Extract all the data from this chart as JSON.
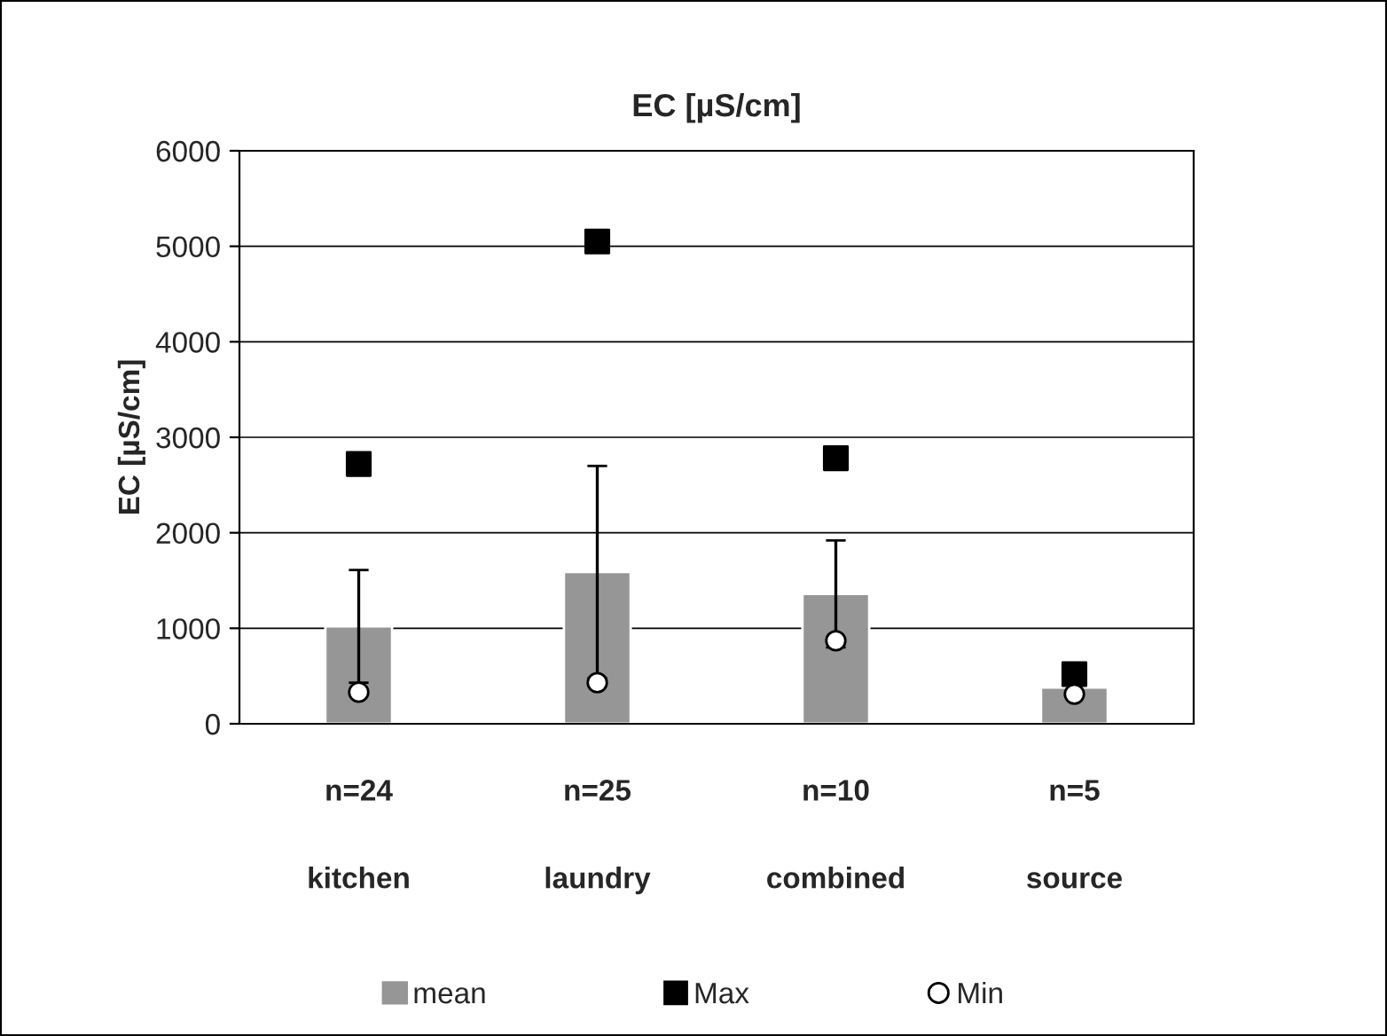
{
  "chart_data": {
    "type": "bar",
    "title": "EC [µS/cm]",
    "ylabel": "EC [µS/cm]",
    "categories": [
      "kitchen",
      "laundry",
      "combined",
      "source"
    ],
    "series": [
      {
        "name": "mean",
        "color": "#969696",
        "values": [
          1020,
          1590,
          1360,
          380
        ],
        "errors": [
          590,
          1110,
          560,
          null
        ]
      },
      {
        "name": "Max",
        "type": "scatter",
        "marker": "square",
        "color": "#000000",
        "values": [
          2720,
          5050,
          2780,
          520
        ]
      },
      {
        "name": "Min",
        "type": "scatter",
        "marker": "circle",
        "color": "#ffffff",
        "values": [
          330,
          430,
          870,
          310
        ]
      }
    ],
    "annotations": [
      "n=24",
      "n=25",
      "n=10",
      "n=5"
    ],
    "ylim": [
      0,
      6000
    ],
    "yticks": [
      0,
      1000,
      2000,
      3000,
      4000,
      5000,
      6000
    ],
    "grid": "y",
    "legend": "bottom"
  }
}
